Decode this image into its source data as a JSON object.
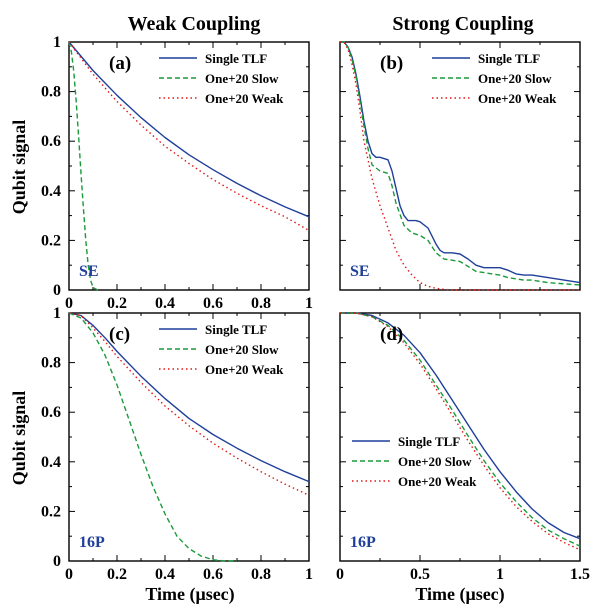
{
  "titles": {
    "left": "Weak Coupling",
    "right": "Strong Coupling"
  },
  "ylabel": "Qubit signal",
  "xlabel": "Time (μsec)",
  "colors": {
    "single": "#1f3f9a",
    "slow": "#1a9a3a",
    "weak": "#e01818",
    "tag": "#1f3f9a"
  },
  "legend_labels": [
    "Single TLF",
    "One+20 Slow",
    "One+20 Weak"
  ],
  "chart_data": [
    {
      "type": "line",
      "panel": "(a)",
      "tag": "SE",
      "xlim": [
        0,
        1
      ],
      "ylim": [
        0,
        1
      ],
      "xticks": [
        "0",
        "0.2",
        "0.4",
        "0.6",
        "0.8",
        "1"
      ],
      "yticks": [
        "0",
        "0.2",
        "0.4",
        "0.6",
        "0.8",
        "1"
      ],
      "legend_position": "top-right",
      "series": [
        {
          "name": "Single TLF",
          "style": "solid",
          "x": [
            0,
            0.1,
            0.2,
            0.3,
            0.4,
            0.5,
            0.6,
            0.7,
            0.8,
            0.9,
            1.0
          ],
          "y": [
            1,
            0.885,
            0.785,
            0.695,
            0.615,
            0.545,
            0.485,
            0.43,
            0.38,
            0.335,
            0.295
          ]
        },
        {
          "name": "One+20 Slow",
          "style": "dashed",
          "x": [
            0,
            0.01,
            0.02,
            0.03,
            0.04,
            0.05,
            0.06,
            0.07,
            0.08,
            0.09,
            0.1,
            0.12
          ],
          "y": [
            1,
            0.96,
            0.88,
            0.76,
            0.62,
            0.47,
            0.33,
            0.2,
            0.1,
            0.04,
            0.01,
            0
          ]
        },
        {
          "name": "One+20 Weak",
          "style": "dotted",
          "x": [
            0,
            0.1,
            0.2,
            0.3,
            0.4,
            0.5,
            0.6,
            0.7,
            0.8,
            0.9,
            1.0
          ],
          "y": [
            1,
            0.87,
            0.76,
            0.665,
            0.58,
            0.51,
            0.445,
            0.39,
            0.34,
            0.295,
            0.24
          ]
        }
      ]
    },
    {
      "type": "line",
      "panel": "(b)",
      "tag": "SE",
      "xlim": [
        0,
        1.5
      ],
      "ylim": [
        0,
        1
      ],
      "xticks": [],
      "yticks": [],
      "legend_position": "top-right",
      "series": [
        {
          "name": "Single TLF",
          "style": "solid",
          "x": [
            0,
            0.025,
            0.05,
            0.075,
            0.1,
            0.125,
            0.15,
            0.175,
            0.2,
            0.225,
            0.25,
            0.3,
            0.325,
            0.35,
            0.375,
            0.4,
            0.425,
            0.45,
            0.475,
            0.5,
            0.55,
            0.6,
            0.625,
            0.65,
            0.7,
            0.75,
            0.8,
            0.85,
            0.9,
            0.95,
            1.0,
            1.05,
            1.1,
            1.15,
            1.2,
            1.3,
            1.4,
            1.5
          ],
          "y": [
            1,
            1,
            0.98,
            0.94,
            0.87,
            0.78,
            0.68,
            0.6,
            0.55,
            0.535,
            0.535,
            0.525,
            0.48,
            0.41,
            0.34,
            0.3,
            0.28,
            0.28,
            0.28,
            0.275,
            0.25,
            0.185,
            0.16,
            0.15,
            0.15,
            0.145,
            0.125,
            0.1,
            0.09,
            0.09,
            0.09,
            0.08,
            0.065,
            0.06,
            0.06,
            0.05,
            0.04,
            0.03
          ]
        },
        {
          "name": "One+20 Slow",
          "style": "dashed",
          "x": [
            0,
            0.025,
            0.05,
            0.075,
            0.1,
            0.125,
            0.15,
            0.175,
            0.2,
            0.25,
            0.3,
            0.325,
            0.35,
            0.4,
            0.45,
            0.5,
            0.55,
            0.6,
            0.65,
            0.7,
            0.75,
            0.8,
            0.85,
            0.9,
            0.95,
            1.0,
            1.05,
            1.1,
            1.15,
            1.2,
            1.3,
            1.4,
            1.5
          ],
          "y": [
            1,
            1,
            0.98,
            0.93,
            0.86,
            0.76,
            0.66,
            0.57,
            0.505,
            0.48,
            0.47,
            0.42,
            0.35,
            0.26,
            0.23,
            0.22,
            0.2,
            0.15,
            0.125,
            0.12,
            0.115,
            0.095,
            0.075,
            0.07,
            0.065,
            0.06,
            0.05,
            0.045,
            0.04,
            0.04,
            0.03,
            0.025,
            0.02
          ]
        },
        {
          "name": "One+20 Weak",
          "style": "dotted",
          "x": [
            0,
            0.025,
            0.05,
            0.075,
            0.1,
            0.125,
            0.15,
            0.2,
            0.25,
            0.3,
            0.35,
            0.4,
            0.45,
            0.5,
            0.55,
            0.6,
            0.65,
            0.7,
            0.8,
            1.0,
            1.2,
            1.5
          ],
          "y": [
            1,
            1,
            0.97,
            0.91,
            0.83,
            0.72,
            0.6,
            0.45,
            0.34,
            0.25,
            0.16,
            0.1,
            0.06,
            0.03,
            0.015,
            0.007,
            0.003,
            0,
            0,
            0,
            0,
            0
          ]
        }
      ]
    },
    {
      "type": "line",
      "panel": "(c)",
      "tag": "16P",
      "xlim": [
        0,
        1
      ],
      "ylim": [
        0,
        1
      ],
      "xticks": [
        "0",
        "0.2",
        "0.4",
        "0.6",
        "0.8",
        "1"
      ],
      "yticks": [
        "0",
        "0.2",
        "0.4",
        "0.6",
        "0.8",
        "1"
      ],
      "legend_position": "top-right",
      "series": [
        {
          "name": "Single TLF",
          "style": "solid",
          "x": [
            0,
            0.05,
            0.1,
            0.15,
            0.2,
            0.3,
            0.4,
            0.5,
            0.6,
            0.7,
            0.8,
            0.9,
            1.0
          ],
          "y": [
            1,
            0.99,
            0.95,
            0.9,
            0.845,
            0.745,
            0.655,
            0.575,
            0.51,
            0.455,
            0.405,
            0.36,
            0.32
          ]
        },
        {
          "name": "One+20 Slow",
          "style": "dashed",
          "x": [
            0,
            0.05,
            0.1,
            0.15,
            0.2,
            0.25,
            0.3,
            0.35,
            0.4,
            0.45,
            0.5,
            0.55,
            0.6,
            0.65,
            0.7
          ],
          "y": [
            1,
            0.98,
            0.92,
            0.83,
            0.71,
            0.57,
            0.43,
            0.3,
            0.19,
            0.1,
            0.05,
            0.02,
            0.005,
            0,
            0
          ]
        },
        {
          "name": "One+20 Weak",
          "style": "dotted",
          "x": [
            0,
            0.05,
            0.1,
            0.15,
            0.2,
            0.3,
            0.4,
            0.5,
            0.6,
            0.7,
            0.8,
            0.9,
            1.0
          ],
          "y": [
            1,
            0.99,
            0.94,
            0.885,
            0.825,
            0.72,
            0.625,
            0.545,
            0.475,
            0.415,
            0.36,
            0.31,
            0.265
          ]
        }
      ]
    },
    {
      "type": "line",
      "panel": "(d)",
      "tag": "16P",
      "xlim": [
        0,
        1.5
      ],
      "ylim": [
        0,
        1
      ],
      "xticks": [
        "0",
        "0.5",
        "1",
        "1.5"
      ],
      "yticks": [],
      "legend_position": "bottom-left",
      "series": [
        {
          "name": "Single TLF",
          "style": "solid",
          "x": [
            0,
            0.1,
            0.2,
            0.3,
            0.4,
            0.5,
            0.6,
            0.7,
            0.8,
            0.9,
            1.0,
            1.1,
            1.2,
            1.3,
            1.4,
            1.5
          ],
          "y": [
            1,
            1,
            0.99,
            0.96,
            0.91,
            0.84,
            0.75,
            0.65,
            0.55,
            0.45,
            0.36,
            0.28,
            0.21,
            0.155,
            0.115,
            0.09
          ]
        },
        {
          "name": "One+20 Slow",
          "style": "dashed",
          "x": [
            0,
            0.1,
            0.2,
            0.3,
            0.4,
            0.5,
            0.6,
            0.7,
            0.8,
            0.9,
            1.0,
            1.1,
            1.2,
            1.3,
            1.4,
            1.5
          ],
          "y": [
            1,
            1,
            0.985,
            0.95,
            0.89,
            0.81,
            0.71,
            0.61,
            0.505,
            0.405,
            0.315,
            0.24,
            0.175,
            0.125,
            0.09,
            0.06
          ]
        },
        {
          "name": "One+20 Weak",
          "style": "dotted",
          "x": [
            0,
            0.1,
            0.2,
            0.3,
            0.4,
            0.5,
            0.6,
            0.7,
            0.8,
            0.9,
            1.0,
            1.1,
            1.2,
            1.3,
            1.4,
            1.5
          ],
          "y": [
            1,
            1,
            0.985,
            0.945,
            0.88,
            0.795,
            0.695,
            0.59,
            0.485,
            0.385,
            0.295,
            0.22,
            0.16,
            0.11,
            0.075,
            0.045
          ]
        }
      ]
    }
  ]
}
